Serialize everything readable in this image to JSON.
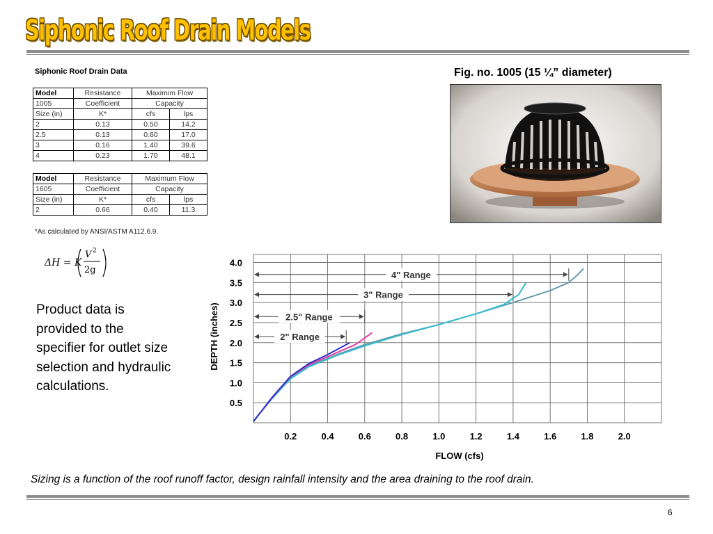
{
  "slide": {
    "title": "Siphonic Roof Drain Models",
    "page_number": "6",
    "bottom_caption": "Sizing is a function of the roof runoff factor, design rainfall intensity and the area draining to the roof drain."
  },
  "data_heading": "Siphonic Roof Drain Data",
  "table_1005": {
    "header": {
      "model_label": "Model",
      "model_value": "1005",
      "resistance_line1": "Resistance",
      "resistance_line2": "Coefficient",
      "flow_line1": "Maximim Flow",
      "flow_line2": "Capacity",
      "size_label": "Size (in)",
      "k_label": "K*",
      "cfs_label": "cfs",
      "lps_label": "lps"
    },
    "rows": [
      {
        "size": "2",
        "k": "0.13",
        "cfs": "0.50",
        "lps": "14.2"
      },
      {
        "size": "2.5",
        "k": "0.13",
        "cfs": "0.60",
        "lps": "17.0"
      },
      {
        "size": "3",
        "k": "0.16",
        "cfs": "1.40",
        "lps": "39.6"
      },
      {
        "size": "4",
        "k": "0.23",
        "cfs": "1.70",
        "lps": "48.1"
      }
    ]
  },
  "table_1605": {
    "header": {
      "model_label": "Model",
      "model_value": "1605",
      "resistance_line1": "Resistance",
      "resistance_line2": "Coefficient",
      "flow_line1": "Maximum Flow",
      "flow_line2": "Capacity",
      "size_label": "Size (in)",
      "k_label": "K*",
      "cfs_label": "cfs",
      "lps_label": "lps"
    },
    "rows": [
      {
        "size": "2",
        "k": "0.66",
        "cfs": "0.40",
        "lps": "11.3"
      }
    ]
  },
  "footnote": "*As calculated by ANSI/ASTM A112.6.9.",
  "equation": {
    "lhs": "ΔH = K",
    "numerator": "V",
    "exponent": "2",
    "denominator": "2g"
  },
  "body_text": "Product data is provided to the specifier for outlet size selection and hydraulic calculations.",
  "figure": {
    "caption": "Fig. no. 1005 (15 ¼” diameter)",
    "photo_icon": "roof-drain-dome-photo"
  },
  "chart_data": {
    "type": "line",
    "title": "",
    "xlabel": "FLOW (cfs)",
    "ylabel": "DEPTH (inches)",
    "xlim": [
      0,
      2.2
    ],
    "ylim": [
      0,
      4.2
    ],
    "xticks": [
      "0.2",
      "0.4",
      "0.6",
      "0.8",
      "1.0",
      "1.2",
      "1.4",
      "1.6",
      "1.8",
      "2.0"
    ],
    "yticks": [
      "0.5",
      "1.0",
      "1.5",
      "2.0",
      "2.5",
      "3.0",
      "3.5",
      "4.0"
    ],
    "grid": true,
    "series": [
      {
        "color": "#6699aa",
        "points": [
          [
            0.0,
            0.05
          ],
          [
            0.1,
            0.6
          ],
          [
            0.2,
            1.12
          ],
          [
            0.3,
            1.42
          ],
          [
            0.45,
            1.7
          ],
          [
            0.6,
            1.95
          ],
          [
            0.8,
            2.22
          ],
          [
            1.0,
            2.45
          ],
          [
            1.2,
            2.72
          ],
          [
            1.4,
            3.0
          ],
          [
            1.6,
            3.3
          ],
          [
            1.7,
            3.5
          ],
          [
            1.75,
            3.7
          ],
          [
            1.78,
            3.85
          ]
        ]
      },
      {
        "color": "#33bbcc",
        "points": [
          [
            0.0,
            0.05
          ],
          [
            0.1,
            0.6
          ],
          [
            0.2,
            1.1
          ],
          [
            0.3,
            1.4
          ],
          [
            0.45,
            1.68
          ],
          [
            0.6,
            1.92
          ],
          [
            0.8,
            2.2
          ],
          [
            1.0,
            2.45
          ],
          [
            1.2,
            2.72
          ],
          [
            1.35,
            2.95
          ],
          [
            1.43,
            3.2
          ],
          [
            1.47,
            3.5
          ]
        ]
      },
      {
        "color": "#e040a0",
        "points": [
          [
            0.0,
            0.03
          ],
          [
            0.1,
            0.62
          ],
          [
            0.2,
            1.15
          ],
          [
            0.3,
            1.45
          ],
          [
            0.4,
            1.65
          ],
          [
            0.55,
            1.95
          ],
          [
            0.64,
            2.25
          ]
        ]
      },
      {
        "color": "#3030cc",
        "points": [
          [
            0.0,
            0.03
          ],
          [
            0.1,
            0.63
          ],
          [
            0.2,
            1.16
          ],
          [
            0.3,
            1.48
          ],
          [
            0.4,
            1.7
          ],
          [
            0.5,
            1.95
          ],
          [
            0.52,
            2.0
          ]
        ]
      }
    ],
    "annotations": [
      {
        "label": "4\" Range",
        "x_start": 0.0,
        "x_end": 1.7,
        "y": 3.7
      },
      {
        "label": "3\" Range",
        "x_start": 0.0,
        "x_end": 1.4,
        "y": 3.2
      },
      {
        "label": "2.5\" Range",
        "x_start": 0.0,
        "x_end": 0.6,
        "y": 2.65
      },
      {
        "label": "2\" Range",
        "x_start": 0.0,
        "x_end": 0.5,
        "y": 2.15
      }
    ],
    "colors": {
      "grid": "#777777",
      "range": "#444444"
    }
  }
}
